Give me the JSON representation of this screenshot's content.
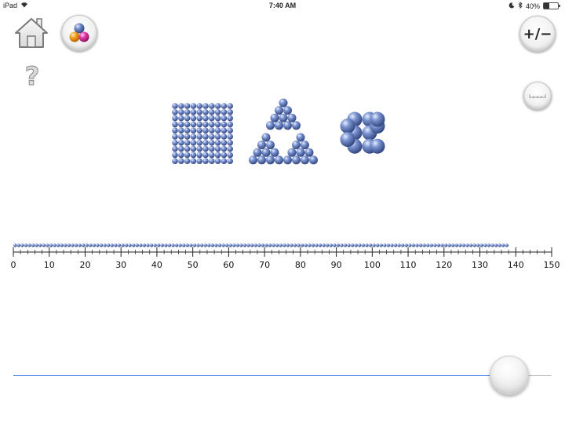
{
  "status_bar": {
    "device": "iPad",
    "time": "7:40 AM",
    "battery": "40%",
    "battery_level": 0.4
  },
  "toolbar": {
    "home_icon": "home-icon",
    "beads_icon": "colored-beads-icon",
    "help_label": "?",
    "plus_minus_label": "+/−",
    "ruler_icon": "ruler-icon"
  },
  "colors": {
    "bead": "#5f79b8",
    "slider_fill": "#2f6fe8",
    "slider_rest": "#b5b5b5"
  },
  "number_line": {
    "min": 0,
    "max": 150,
    "major_step": 10,
    "minor_step": 2,
    "labels": [
      "0",
      "10",
      "20",
      "30",
      "40",
      "50",
      "60",
      "70",
      "80",
      "90",
      "100",
      "110",
      "120",
      "130",
      "140",
      "150"
    ]
  },
  "beads": {
    "count": 138,
    "square_grid": {
      "rows": 10,
      "cols": 10
    },
    "triangles": {
      "count": 3,
      "rows": 4
    },
    "cluster": {
      "rows": 3,
      "cols": 2,
      "side_beads": 2
    }
  },
  "slider": {
    "min": 0,
    "max": 150,
    "value": 138
  }
}
